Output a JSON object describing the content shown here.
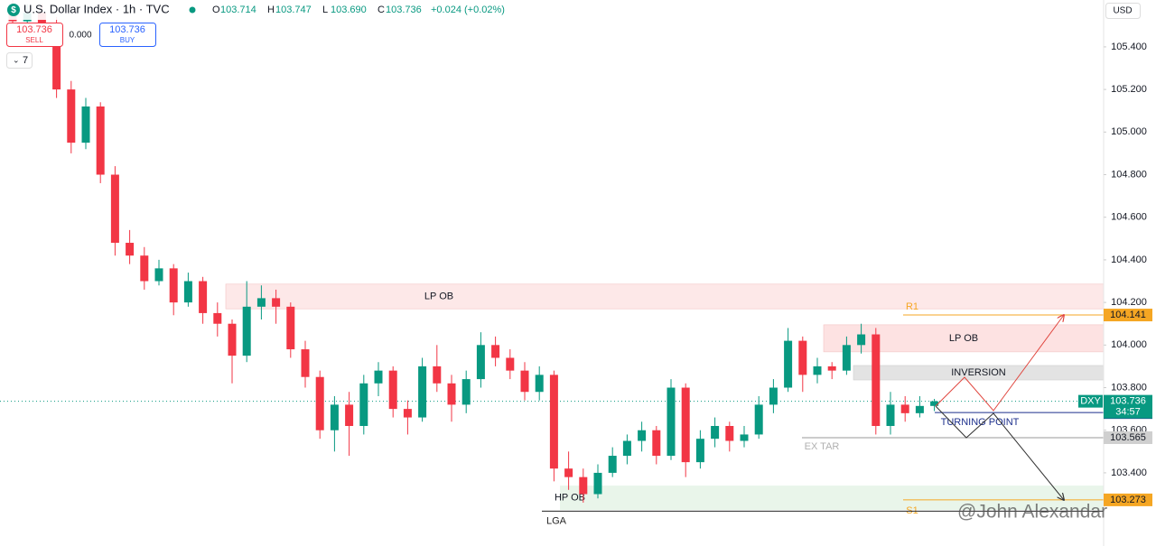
{
  "header": {
    "symbol_icon": "$",
    "title": "U.S. Dollar Index · 1h · TVC",
    "ohlc": [
      {
        "label": "O",
        "value": "103.714"
      },
      {
        "label": "H",
        "value": "103.747"
      },
      {
        "label": "L",
        "value": "103.690"
      },
      {
        "label": "C",
        "value": "103.736"
      }
    ],
    "change": "+0.024 (+0.02%)",
    "sell_price": "103.736",
    "sell_label": "SELL",
    "spread": "0.000",
    "buy_price": "103.736",
    "buy_label": "BUY",
    "indicator_count": "7",
    "currency": "USD"
  },
  "chart_data": {
    "type": "candlestick",
    "up_color": "#089981",
    "down_color": "#f23645",
    "open": [
      105.58,
      105.52,
      105.56,
      105.5,
      105.2,
      104.95,
      105.12,
      104.8,
      104.48,
      104.42,
      104.3,
      104.36,
      104.2,
      104.3,
      104.15,
      104.1,
      103.95,
      104.18,
      104.22,
      104.18,
      103.98,
      103.85,
      103.6,
      103.72,
      103.62,
      103.82,
      103.88,
      103.7,
      103.66,
      103.9,
      103.82,
      103.72,
      103.84,
      104.0,
      103.94,
      103.88,
      103.78,
      103.86,
      103.42,
      103.38,
      103.3,
      103.4,
      103.48,
      103.55,
      103.6,
      103.48,
      103.8,
      103.45,
      103.56,
      103.62,
      103.55,
      103.58,
      103.72,
      103.8,
      104.02,
      103.86,
      103.9,
      103.88,
      104.0,
      104.05,
      103.62,
      103.72,
      103.68,
      103.714
    ],
    "high": [
      105.62,
      105.6,
      105.6,
      105.54,
      105.24,
      105.16,
      105.14,
      104.84,
      104.54,
      104.46,
      104.4,
      104.38,
      104.34,
      104.32,
      104.2,
      104.12,
      104.3,
      104.28,
      104.26,
      104.2,
      104.02,
      103.88,
      103.76,
      103.78,
      103.86,
      103.92,
      103.9,
      103.74,
      103.94,
      104.0,
      103.86,
      103.88,
      104.06,
      104.04,
      103.98,
      103.92,
      103.9,
      103.88,
      103.5,
      103.42,
      103.44,
      103.52,
      103.58,
      103.64,
      103.62,
      103.84,
      103.82,
      103.6,
      103.66,
      103.64,
      103.62,
      103.76,
      103.84,
      104.08,
      104.04,
      103.94,
      103.92,
      104.04,
      104.1,
      104.08,
      103.78,
      103.76,
      103.76,
      103.747
    ],
    "low": [
      105.48,
      105.46,
      105.44,
      105.16,
      104.9,
      104.92,
      104.76,
      104.42,
      104.38,
      104.26,
      104.28,
      104.14,
      104.18,
      104.1,
      104.04,
      103.82,
      103.92,
      104.12,
      104.1,
      103.94,
      103.8,
      103.56,
      103.5,
      103.48,
      103.58,
      103.76,
      103.66,
      103.58,
      103.64,
      103.78,
      103.64,
      103.68,
      103.8,
      103.9,
      103.84,
      103.74,
      103.74,
      103.36,
      103.32,
      103.26,
      103.28,
      103.38,
      103.44,
      103.5,
      103.44,
      103.46,
      103.38,
      103.42,
      103.52,
      103.5,
      103.52,
      103.56,
      103.68,
      103.78,
      103.78,
      103.82,
      103.84,
      103.86,
      103.96,
      103.58,
      103.58,
      103.64,
      103.66,
      103.69
    ],
    "close": [
      105.52,
      105.56,
      105.5,
      105.2,
      104.95,
      105.12,
      104.8,
      104.48,
      104.42,
      104.3,
      104.36,
      104.2,
      104.3,
      104.15,
      104.1,
      103.95,
      104.18,
      104.22,
      104.18,
      103.98,
      103.85,
      103.6,
      103.72,
      103.62,
      103.82,
      103.88,
      103.7,
      103.66,
      103.9,
      103.82,
      103.72,
      103.84,
      104.0,
      103.94,
      103.88,
      103.78,
      103.86,
      103.42,
      103.38,
      103.3,
      103.4,
      103.48,
      103.55,
      103.6,
      103.48,
      103.8,
      103.45,
      103.56,
      103.62,
      103.55,
      103.58,
      103.72,
      103.8,
      104.02,
      103.86,
      103.9,
      103.88,
      104.0,
      104.05,
      103.62,
      103.72,
      103.68,
      103.714,
      103.736
    ],
    "ylim": [
      103.12,
      105.62
    ],
    "yticks": [
      {
        "value": 103.4,
        "label": "103.400"
      },
      {
        "value": 103.6,
        "label": "103.600"
      },
      {
        "value": 103.8,
        "label": "103.800"
      },
      {
        "value": 104.0,
        "label": "104.000"
      },
      {
        "value": 104.2,
        "label": "104.200"
      },
      {
        "value": 104.4,
        "label": "104.400"
      },
      {
        "value": 104.6,
        "label": "104.600"
      },
      {
        "value": 104.8,
        "label": "104.800"
      },
      {
        "value": 105.0,
        "label": "105.000"
      },
      {
        "value": 105.2,
        "label": "105.200"
      },
      {
        "value": 105.4,
        "label": "105.400"
      }
    ],
    "zones": [
      {
        "label": "LP OB",
        "top": 104.286,
        "bottom": 104.17,
        "color": "#fde8e8"
      },
      {
        "label": "LP OB",
        "top": 104.095,
        "bottom": 103.968,
        "color": "#fde2e2"
      },
      {
        "label": "INVERSION",
        "top": 103.904,
        "bottom": 103.836,
        "color": "#e3e3e3"
      },
      {
        "label": "HP OB",
        "top": 103.34,
        "bottom": 103.226,
        "color": "#e9f5ea"
      }
    ],
    "levels": [
      {
        "name": "R1",
        "value": 104.141,
        "color": "#f5a623",
        "tag": true
      },
      {
        "name": "S1",
        "value": 103.273,
        "color": "#f5a623",
        "tag": true
      },
      {
        "name": "TURNING POINT",
        "value": 103.683,
        "color": "#1c2f8c",
        "tag": true
      },
      {
        "name": "EX TAR",
        "value": 103.565,
        "color": "#9a9a9a",
        "tag": true
      },
      {
        "name": "LGA",
        "value": 103.22,
        "color": "#222222",
        "tag": false
      }
    ],
    "last_price": 103.736,
    "symbol_tag": "DXY",
    "countdown": "34:57",
    "watermark": "@John Alexandar"
  }
}
